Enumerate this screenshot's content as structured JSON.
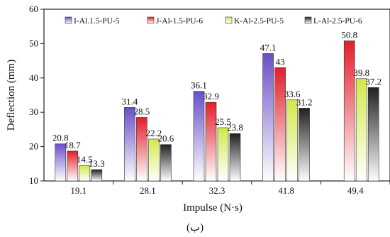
{
  "chart_data": {
    "type": "bar",
    "categories": [
      "19.1",
      "28.1",
      "32.3",
      "41.8",
      "49.4"
    ],
    "series": [
      {
        "name": "I-Al.1.5-PU-5",
        "values": [
          20.8,
          31.4,
          36.1,
          47.1,
          null
        ],
        "color": "#6a4fc8"
      },
      {
        "name": "J-Al-1.5-PU-6",
        "values": [
          18.7,
          28.5,
          32.9,
          43,
          50.8
        ],
        "color": "#e31e2a"
      },
      {
        "name": "K-Al-2.5-PU-5",
        "values": [
          14.5,
          22.2,
          25.5,
          33.6,
          39.8
        ],
        "color": "#d4e84a"
      },
      {
        "name": "L-Al-2.5-PU-6",
        "values": [
          13.3,
          20.6,
          23.8,
          31.2,
          37.2
        ],
        "color": "#202020"
      }
    ],
    "data_labels": [
      [
        "20.8",
        "31.4",
        "36.1",
        "47.1",
        ""
      ],
      [
        "18.7",
        "28.5",
        "32.9",
        "43",
        "50.8"
      ],
      [
        "14.5",
        "22.2",
        "25.5",
        "33.6",
        "39.8"
      ],
      [
        "13.3",
        "20.6",
        "23.8",
        "31.2",
        "37.2"
      ]
    ],
    "xlabel": "Impulse (N·s)",
    "ylabel": "Deflection (mm)",
    "ylim": [
      10,
      60
    ],
    "yticks": [
      "10",
      "20",
      "30",
      "40",
      "50",
      "60"
    ],
    "grid": false,
    "legend": "top",
    "caption": "(ب)"
  }
}
